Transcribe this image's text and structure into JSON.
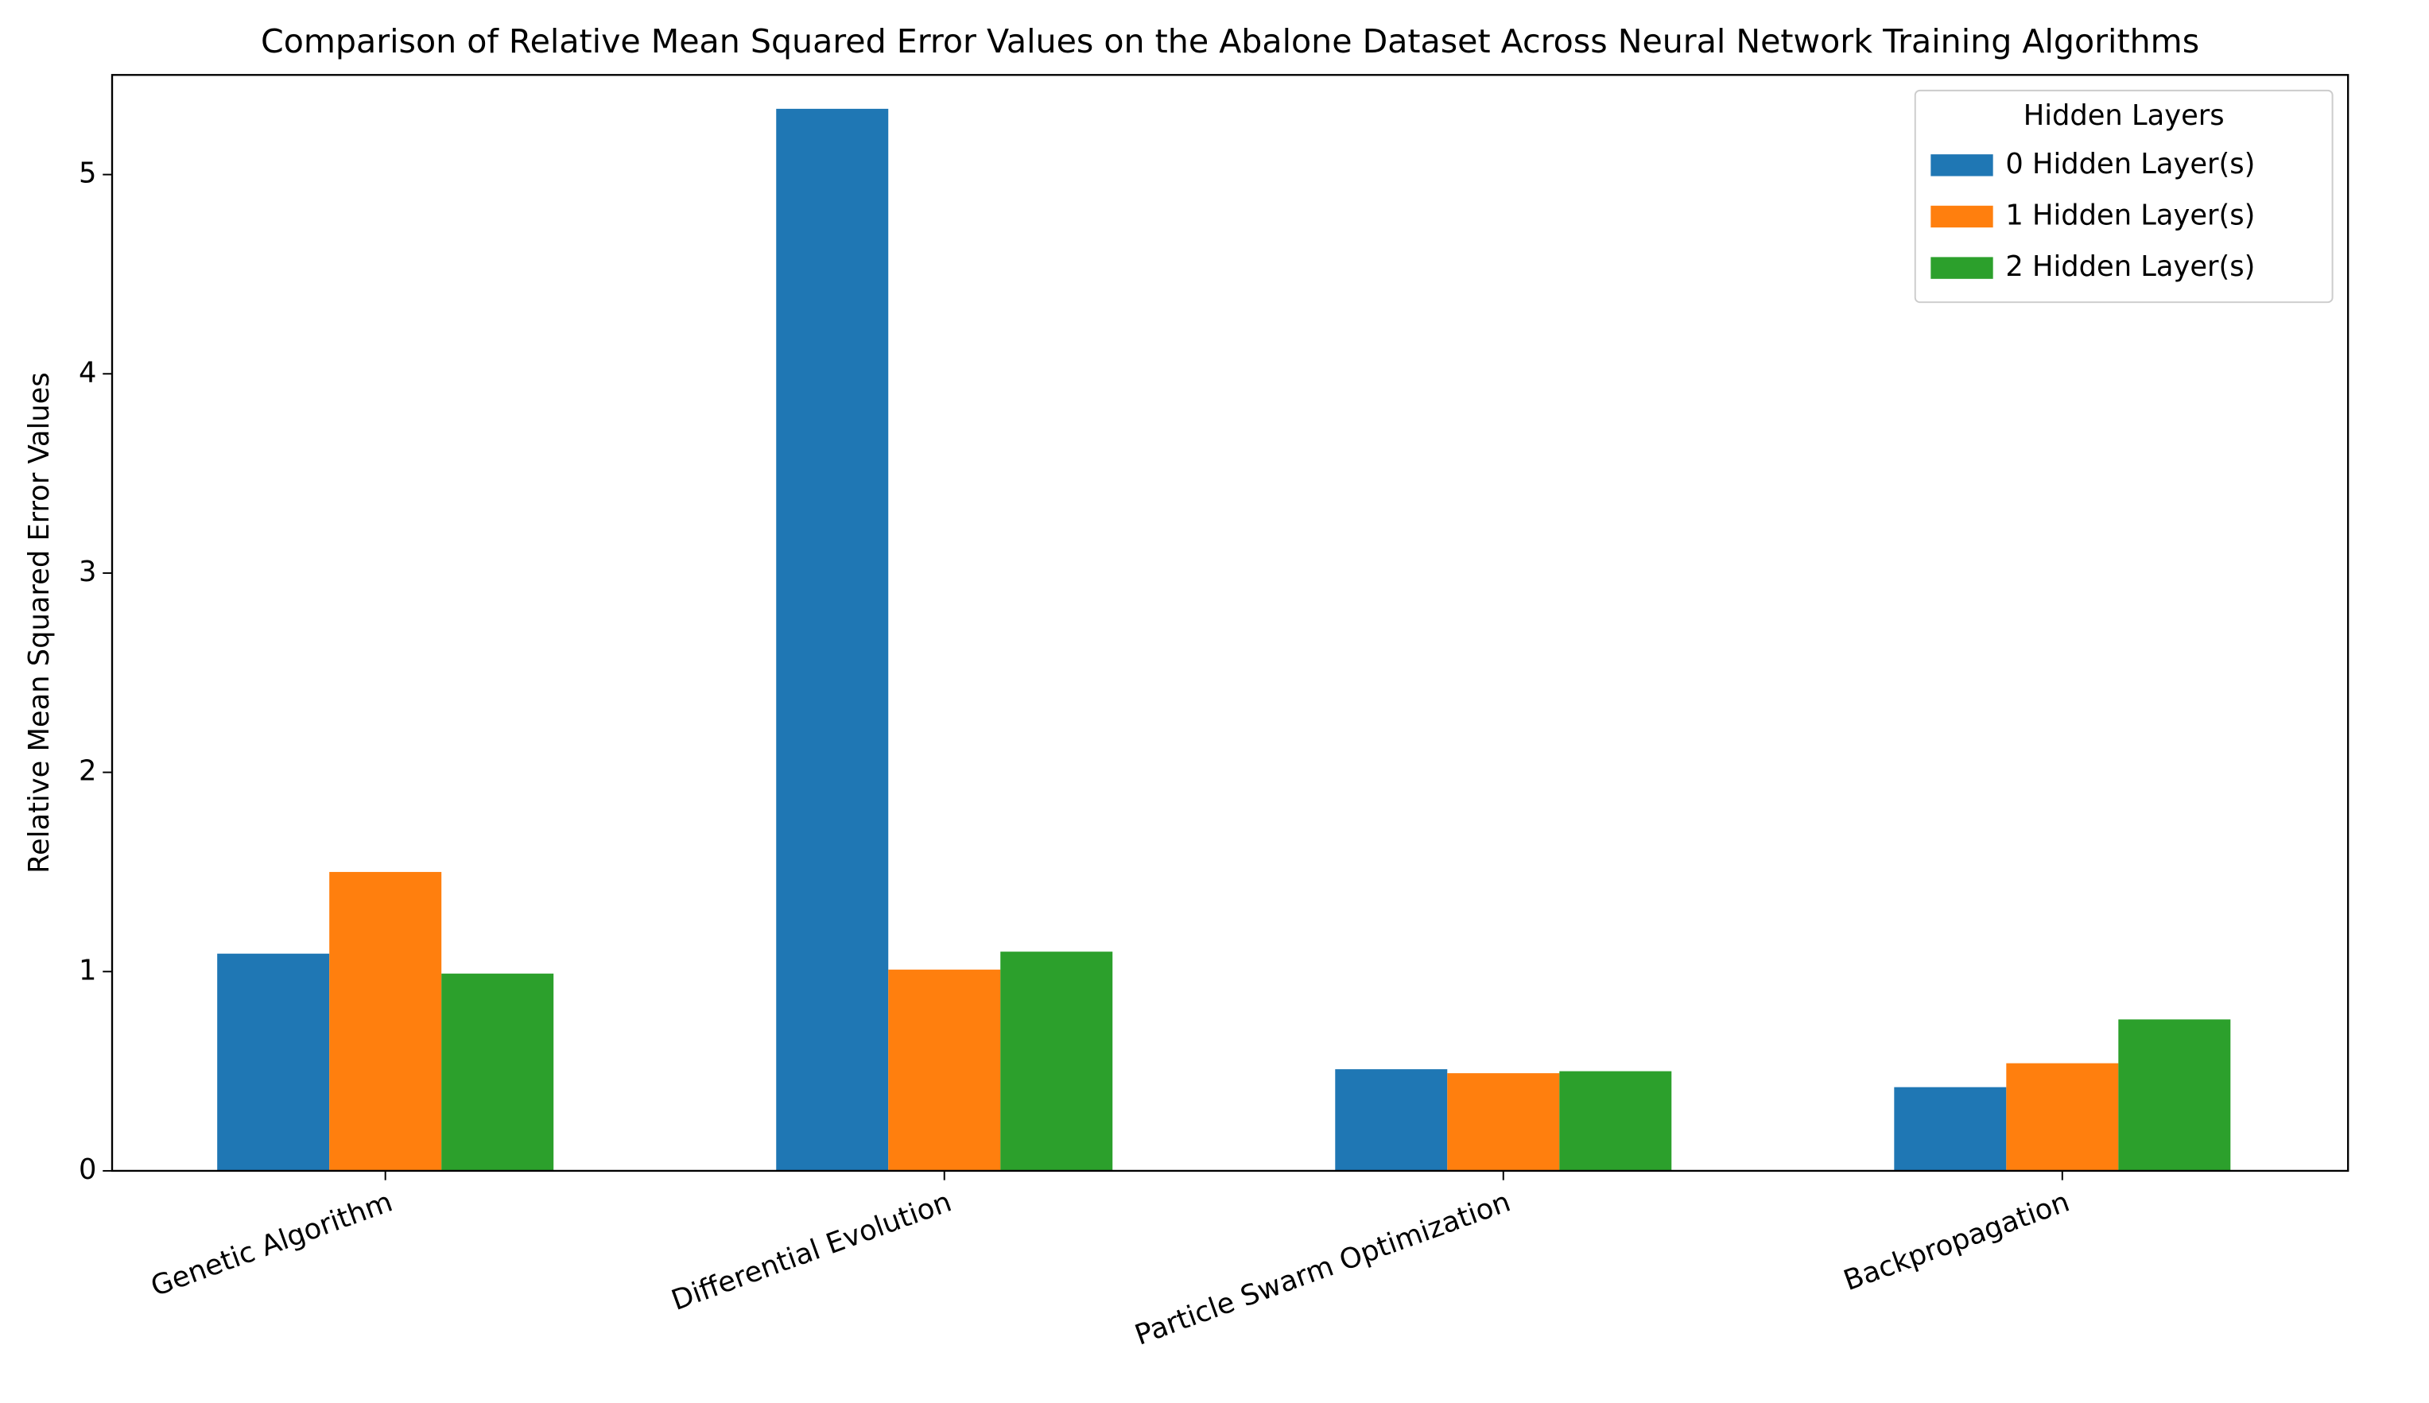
{
  "chart_data": {
    "type": "bar",
    "title": "Comparison of Relative Mean Squared Error Values on the Abalone Dataset Across Neural Network Training Algorithms",
    "y_label": "Relative Mean Squared Error Values",
    "categories": [
      "Genetic Algorithm",
      "Differential Evolution",
      "Particle Swarm Optimization",
      "Backpropagation"
    ],
    "series": [
      {
        "name": "0 Hidden Layer(s)",
        "color": "#1f77b4",
        "values": [
          1.09,
          5.33,
          0.51,
          0.42
        ]
      },
      {
        "name": "1 Hidden Layer(s)",
        "color": "#ff7f0e",
        "values": [
          1.5,
          1.01,
          0.49,
          0.54
        ]
      },
      {
        "name": "2 Hidden Layer(s)",
        "color": "#2ca02c",
        "values": [
          0.99,
          1.1,
          0.5,
          0.76
        ]
      }
    ],
    "legend_title": "Hidden Layers",
    "legend": "upper right",
    "ylim": [
      0,
      5.5
    ],
    "yticks": [
      0,
      1,
      2,
      3,
      4,
      5
    ],
    "grid": false
  }
}
